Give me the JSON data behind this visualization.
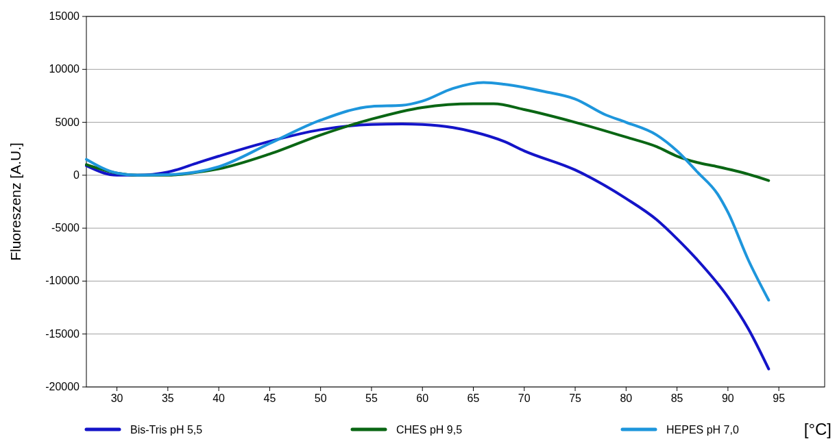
{
  "chart_data": {
    "type": "line",
    "ylabel": "Fluoreszenz  [A.U.]",
    "xlabel": "[°C]",
    "xlim": [
      27,
      99.5
    ],
    "xticks": [
      30,
      35,
      40,
      45,
      50,
      55,
      60,
      65,
      70,
      75,
      80,
      85,
      90,
      95
    ],
    "ylim": [
      -20000,
      15000
    ],
    "yticks": [
      -20000,
      -15000,
      -10000,
      -5000,
      0,
      5000,
      10000,
      15000
    ],
    "grid": "y",
    "legend": "bottom",
    "marker": "none",
    "line_style": "solid",
    "series": [
      {
        "name": "Bis-Tris pH 5,5",
        "color": "#1414c8",
        "x": [
          27,
          30,
          32,
          35,
          38,
          40,
          45,
          50,
          55,
          58,
          60,
          63,
          65,
          68,
          70,
          75,
          80,
          83,
          85,
          87,
          90,
          92,
          94
        ],
        "values": [
          900,
          0,
          0,
          300,
          1200,
          1800,
          3200,
          4300,
          4800,
          4850,
          4800,
          4500,
          4100,
          3200,
          2300,
          500,
          -2200,
          -4200,
          -6000,
          -8000,
          -11500,
          -14500,
          -18300
        ]
      },
      {
        "name": "CHES pH 9,5",
        "color": "#0a6614",
        "x": [
          27,
          30,
          32,
          35,
          38,
          40,
          45,
          50,
          55,
          60,
          65,
          67,
          70,
          75,
          80,
          83,
          85,
          87,
          89,
          92,
          94
        ],
        "values": [
          1000,
          200,
          0,
          0,
          300,
          600,
          2000,
          3800,
          5300,
          6400,
          6750,
          6750,
          6200,
          5000,
          3600,
          2700,
          1800,
          1200,
          800,
          100,
          -500
        ]
      },
      {
        "name": "HEPES pH 7,0",
        "color": "#1e96dc",
        "x": [
          27,
          30,
          32,
          35,
          40,
          45,
          50,
          55,
          58,
          60,
          63,
          66,
          68,
          72,
          75,
          78,
          80,
          83,
          85,
          87,
          89,
          90,
          92,
          94
        ],
        "values": [
          1500,
          200,
          0,
          50,
          800,
          3000,
          5200,
          6500,
          6600,
          7000,
          8200,
          8750,
          8600,
          7900,
          7200,
          5700,
          5000,
          3800,
          2300,
          300,
          -1800,
          -3500,
          -8000,
          -11800
        ]
      }
    ]
  }
}
